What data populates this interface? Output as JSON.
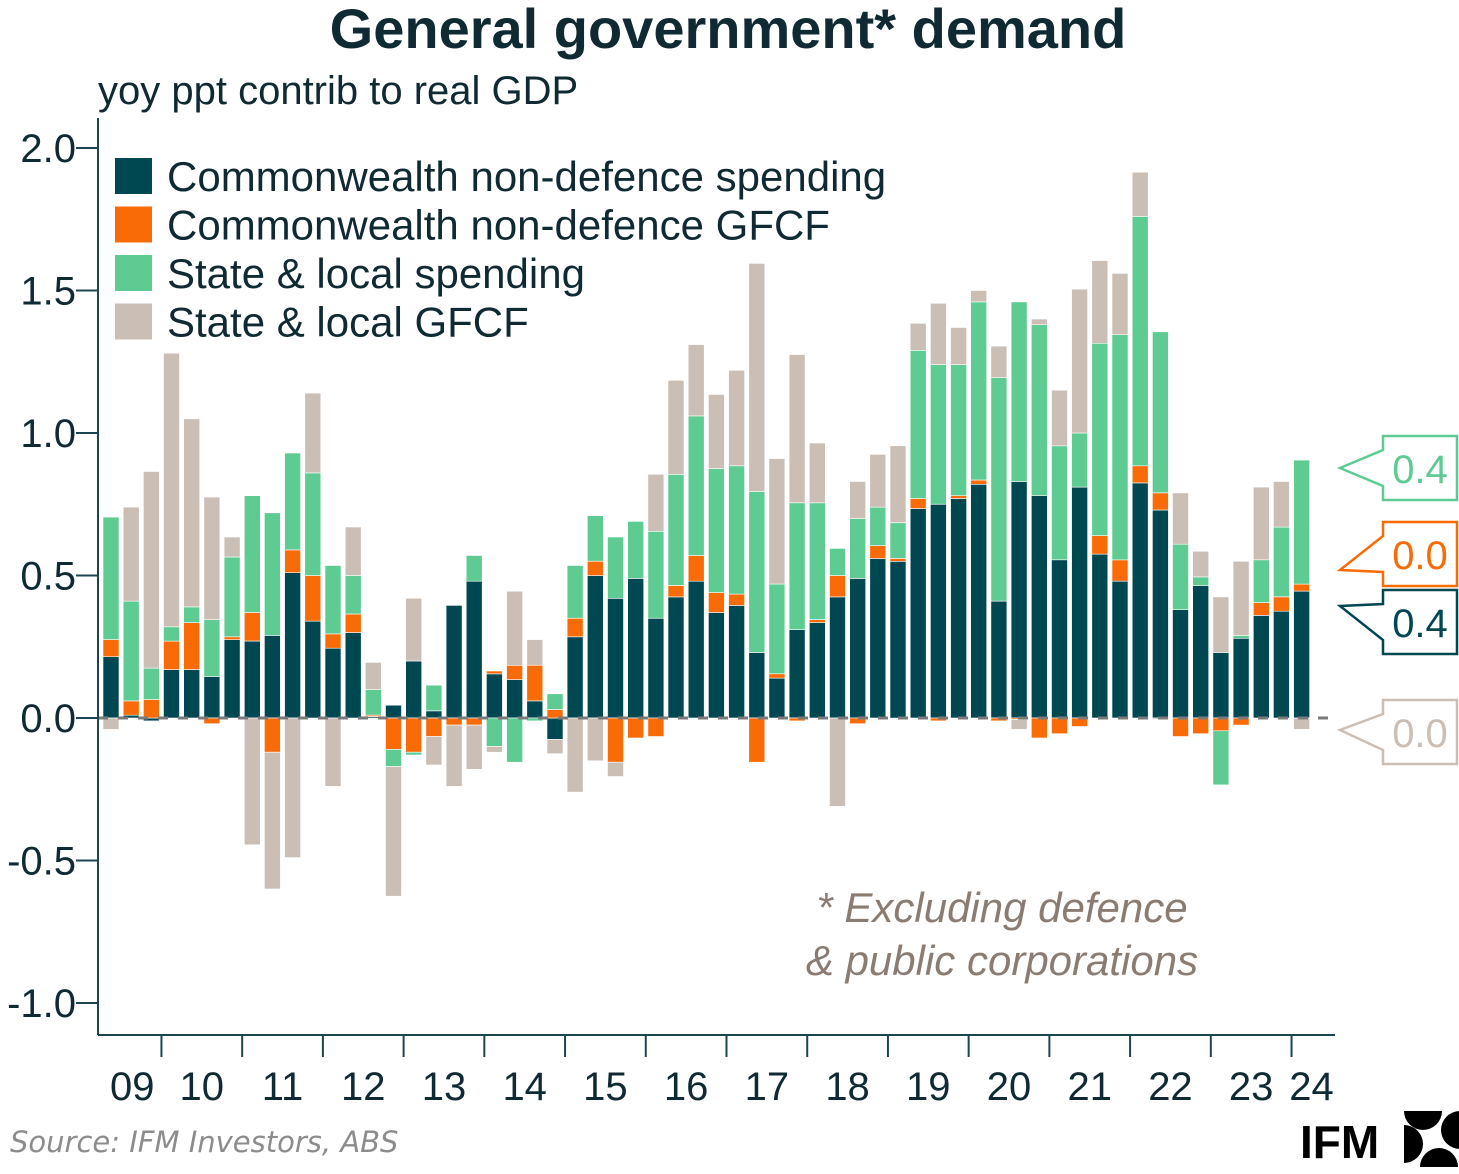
{
  "chart_data": {
    "type": "bar",
    "stacked": true,
    "title": "General government* demand",
    "subtitle": "yoy ppt contrib to real GDP",
    "ylabel": "yoy ppt contrib to real GDP",
    "xlabel": "",
    "ylim": [
      -1.1,
      2.1
    ],
    "yticks": [
      2.0,
      1.5,
      1.0,
      0.5,
      0.0,
      -0.5,
      -1.0
    ],
    "ytick_labels": [
      "2.0",
      "1.5",
      "1.0",
      "0.5",
      "0.0",
      "-0.5",
      "-1.0"
    ],
    "x_start": "2009Q2",
    "x_end": "2024Q1",
    "frequency": "quarterly",
    "xtick_labels": [
      "09",
      "10",
      "11",
      "12",
      "13",
      "14",
      "15",
      "16",
      "17",
      "18",
      "19",
      "20",
      "21",
      "22",
      "23",
      "24"
    ],
    "legend_position": "top-left",
    "grid": false,
    "series": [
      {
        "name": "Commonwealth non-defence spending",
        "color": "#004851",
        "values": [
          0.215,
          0.01,
          -0.01,
          0.17,
          0.17,
          0.145,
          0.275,
          0.27,
          0.29,
          0.51,
          0.34,
          0.245,
          0.3,
          0.005,
          0.045,
          0.2,
          0.025,
          0.395,
          0.48,
          0.155,
          0.135,
          0.06,
          -0.075,
          0.285,
          0.5,
          0.42,
          0.49,
          0.35,
          0.425,
          0.48,
          0.37,
          0.395,
          0.23,
          0.14,
          0.31,
          0.335,
          0.425,
          0.49,
          0.56,
          0.55,
          0.735,
          0.75,
          0.77,
          0.82,
          0.41,
          0.83,
          0.78,
          0.555,
          0.81,
          0.575,
          0.48,
          0.825,
          0.73,
          0.38,
          0.465,
          0.23,
          0.28,
          0.36,
          0.375,
          0.445
        ]
      },
      {
        "name": "Commonwealth non-defence GFCF",
        "color": "#f96b07",
        "values": [
          0.06,
          0.05,
          0.065,
          0.1,
          0.165,
          -0.02,
          0.01,
          0.1,
          -0.12,
          0.08,
          0.16,
          0.05,
          0.065,
          0.005,
          -0.11,
          -0.12,
          -0.065,
          -0.025,
          -0.025,
          0.01,
          0.05,
          0.125,
          0.03,
          0.065,
          0.05,
          -0.155,
          -0.07,
          -0.065,
          0.04,
          0.09,
          0.07,
          0.04,
          -0.155,
          0.015,
          -0.01,
          0.01,
          0.075,
          -0.02,
          0.045,
          0.01,
          0.035,
          -0.01,
          0.01,
          0.015,
          -0.01,
          -0.005,
          -0.07,
          -0.055,
          -0.03,
          0.065,
          0.075,
          0.06,
          0.06,
          -0.065,
          -0.055,
          -0.045,
          -0.025,
          0.045,
          0.05,
          0.025
        ]
      },
      {
        "name": "State & local spending",
        "color": "#5ecb92",
        "values": [
          0.43,
          0.35,
          0.11,
          0.05,
          0.055,
          0.2,
          0.28,
          0.41,
          0.43,
          0.34,
          0.36,
          0.24,
          0.135,
          0.09,
          -0.06,
          -0.01,
          0.09,
          0.0,
          0.09,
          -0.1,
          -0.155,
          -0.01,
          0.055,
          0.185,
          0.16,
          0.215,
          0.2,
          0.305,
          0.39,
          0.49,
          0.435,
          0.45,
          0.565,
          0.315,
          0.445,
          0.41,
          0.095,
          0.21,
          0.135,
          0.125,
          0.52,
          0.49,
          0.46,
          0.625,
          0.785,
          0.63,
          0.6,
          0.4,
          0.19,
          0.675,
          0.79,
          0.875,
          0.565,
          0.23,
          0.03,
          -0.19,
          0.01,
          0.15,
          0.245,
          0.435
        ]
      },
      {
        "name": "State & local GFCF",
        "color": "#cbbeb5",
        "values": [
          -0.04,
          0.33,
          0.69,
          0.96,
          0.66,
          0.43,
          0.07,
          -0.445,
          -0.48,
          -0.49,
          0.28,
          -0.24,
          0.17,
          0.095,
          -0.455,
          0.22,
          -0.1,
          -0.215,
          -0.155,
          -0.02,
          0.26,
          0.09,
          -0.05,
          -0.26,
          -0.15,
          -0.05,
          0.0,
          0.2,
          0.33,
          0.25,
          0.26,
          0.335,
          0.8,
          0.44,
          0.52,
          0.21,
          -0.31,
          0.13,
          0.185,
          0.27,
          0.095,
          0.215,
          0.13,
          0.04,
          0.11,
          -0.035,
          0.02,
          0.195,
          0.505,
          0.29,
          0.215,
          0.155,
          -0.005,
          0.18,
          0.09,
          0.195,
          0.26,
          0.255,
          0.16,
          -0.04
        ]
      }
    ],
    "latest_callouts": [
      {
        "series": "State & local spending",
        "label": "0.4",
        "color": "#5ecb92"
      },
      {
        "series": "Commonwealth non-defence GFCF",
        "label": "0.0",
        "color": "#f96b07"
      },
      {
        "series": "Commonwealth non-defence spending",
        "label": "0.4",
        "color": "#004851"
      },
      {
        "series": "State & local GFCF",
        "label": "0.0",
        "color": "#cbbeb5"
      }
    ],
    "annotation": [
      "* Excluding defence",
      "& public corporations"
    ],
    "source": "Source: IFM Investors, ABS"
  },
  "branding": {
    "logo_text": "IFM",
    "logo_icon": "ifm-quarter-circles-icon"
  }
}
